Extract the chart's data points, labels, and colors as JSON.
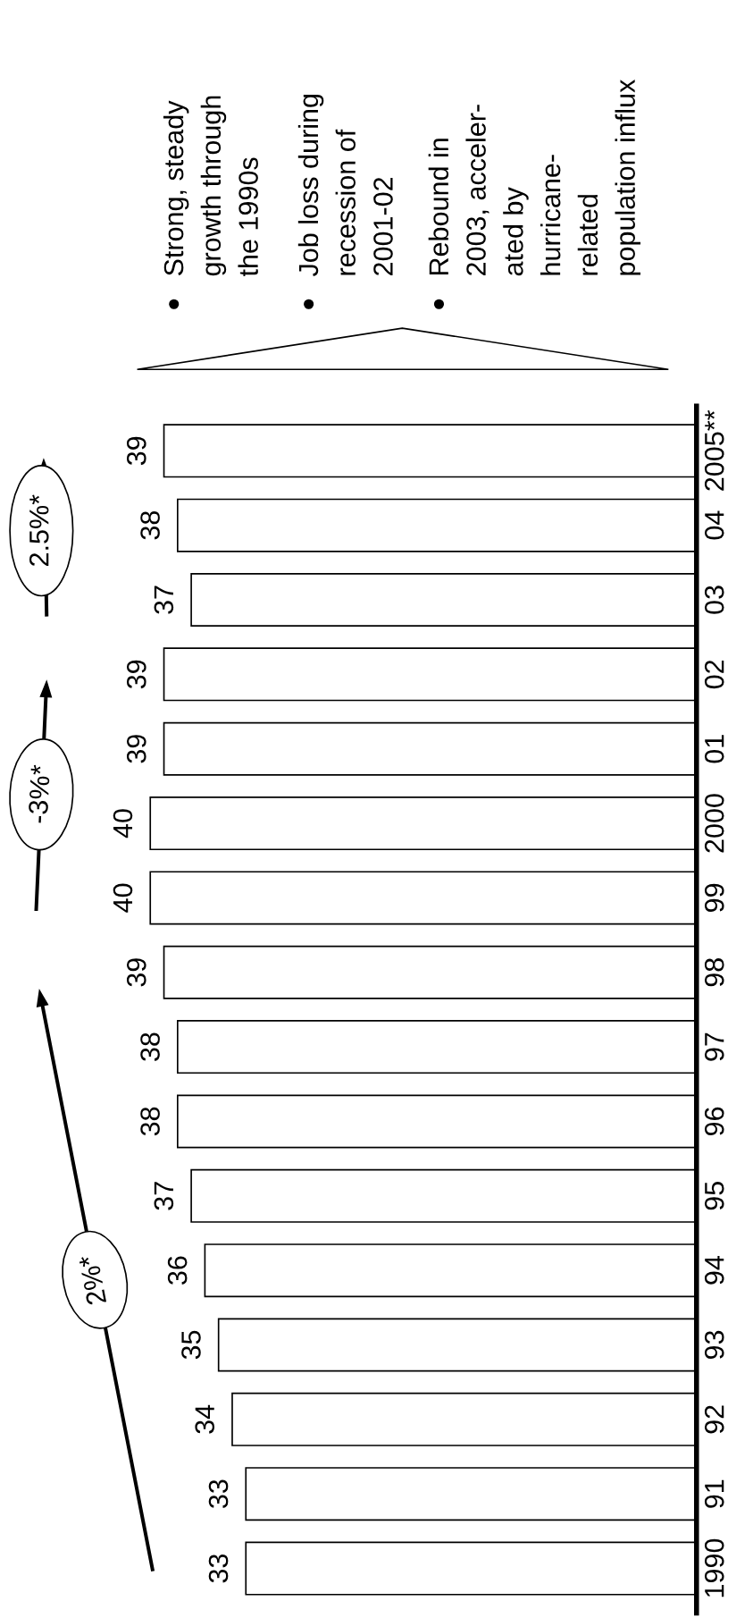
{
  "chart_data": {
    "type": "bar",
    "orientation": "horizontal",
    "categories": [
      "2005**",
      "04",
      "03",
      "02",
      "01",
      "2000",
      "99",
      "98",
      "97",
      "96",
      "95",
      "94",
      "93",
      "92",
      "91",
      "1990"
    ],
    "values": [
      39,
      38,
      37,
      39,
      39,
      40,
      40,
      39,
      38,
      38,
      37,
      36,
      35,
      34,
      33,
      33
    ],
    "color": "#ffffff",
    "data_labels": true,
    "tick_labels": "y",
    "grid": false,
    "annotations": [
      "2%*",
      "-3%*",
      "2.5%*",
      "Strong, steady\ngrowth through\nthe 1990s",
      "Job loss during\nrecession of\n2001-02",
      "Rebound in\n2003, acceler-\nated by\nhurricane-\nrelated\npopulation influx"
    ]
  }
}
